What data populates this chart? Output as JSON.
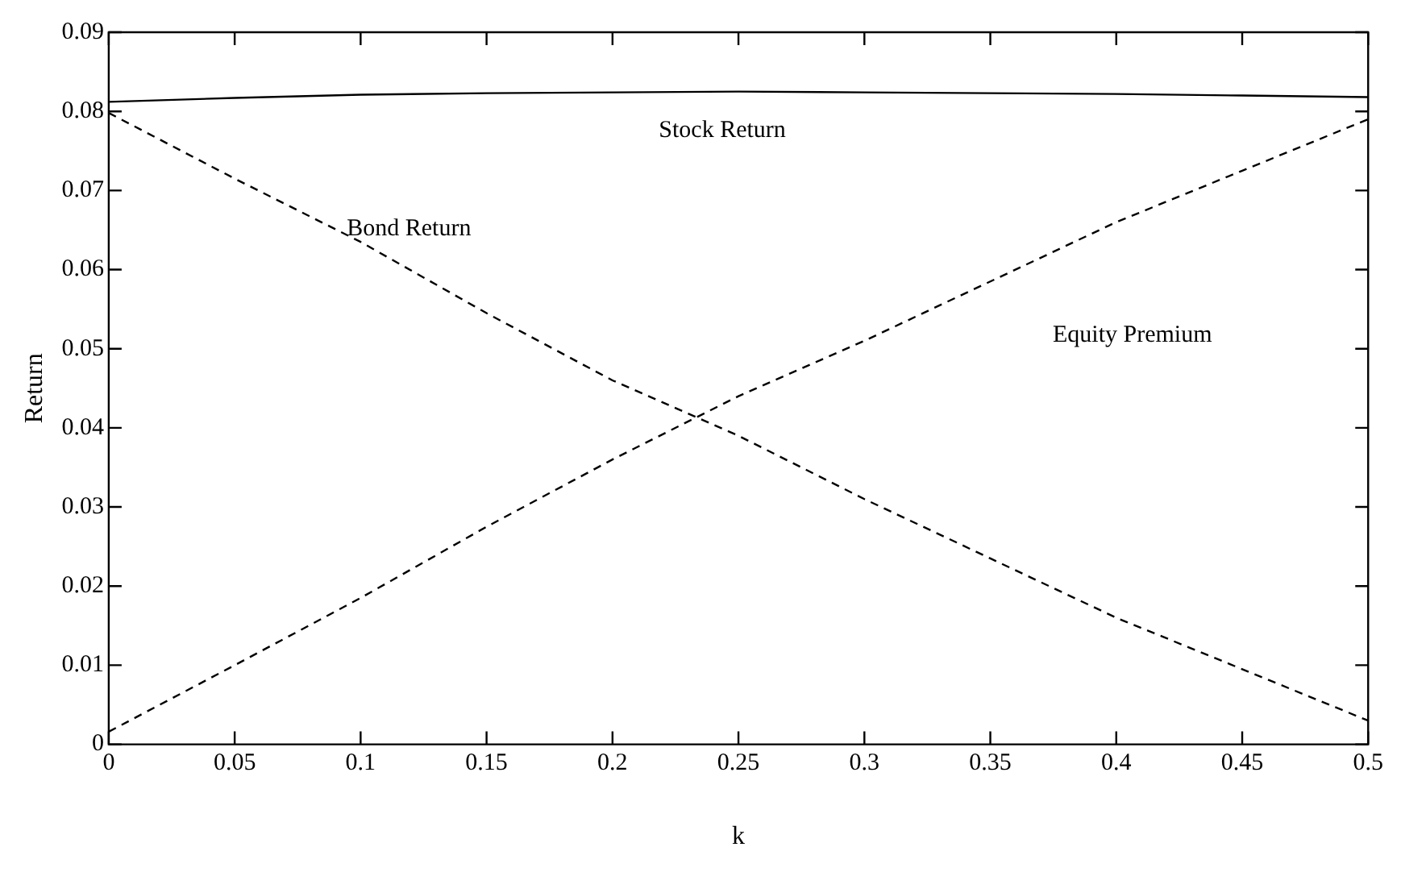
{
  "chart_data": {
    "type": "line",
    "xlabel": "k",
    "ylabel": "Return",
    "x": [
      0,
      0.05,
      0.1,
      0.15,
      0.2,
      0.25,
      0.3,
      0.35,
      0.4,
      0.45,
      0.5
    ],
    "series": [
      {
        "name": "Stock Return",
        "color": "#000000",
        "line_style": "solid",
        "values": [
          0.0812,
          0.0817,
          0.0821,
          0.0823,
          0.0824,
          0.0825,
          0.0824,
          0.0823,
          0.0822,
          0.082,
          0.0818
        ]
      },
      {
        "name": "Bond Return",
        "color": "#000000",
        "line_style": "dashed",
        "values": [
          0.0798,
          0.0715,
          0.0635,
          0.0545,
          0.046,
          0.039,
          0.031,
          0.0235,
          0.016,
          0.0095,
          0.003
        ]
      },
      {
        "name": "Equity Premium",
        "color": "#000000",
        "line_style": "dashed",
        "values": [
          0.0016,
          0.01,
          0.0185,
          0.0275,
          0.036,
          0.044,
          0.051,
          0.0585,
          0.066,
          0.0725,
          0.079
        ]
      }
    ],
    "xlim": [
      0,
      0.5
    ],
    "xticks": [
      0,
      0.05,
      0.1,
      0.15,
      0.2,
      0.25,
      0.3,
      0.35,
      0.4,
      0.45,
      0.5
    ],
    "ylim": [
      0,
      0.09
    ],
    "yticks": [
      0,
      0.01,
      0.02,
      0.03,
      0.04,
      0.05,
      0.06,
      0.07,
      0.08,
      0.09
    ],
    "marker": "none"
  }
}
